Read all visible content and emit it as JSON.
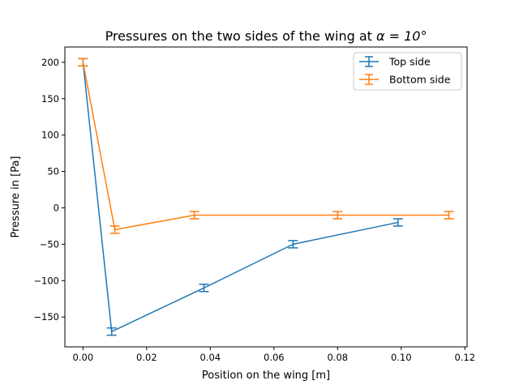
{
  "chart_data": {
    "type": "line",
    "title_prefix": "Pressures on the two sides of the wing at",
    "title_math": "α = 10°",
    "xlabel": "Position on the wing [m]",
    "ylabel": "Pressure in [Pa]",
    "xlim": [
      -0.0057,
      0.1207
    ],
    "ylim": [
      -191,
      221
    ],
    "xticks": [
      0.0,
      0.02,
      0.04,
      0.06,
      0.08,
      0.1,
      0.12
    ],
    "xtick_labels": [
      "0.00",
      "0.02",
      "0.04",
      "0.06",
      "0.08",
      "0.10",
      "0.12"
    ],
    "yticks": [
      -150,
      -100,
      -50,
      0,
      50,
      100,
      150,
      200
    ],
    "ytick_labels": [
      "−150",
      "−100",
      "−50",
      "0",
      "50",
      "100",
      "150",
      "200"
    ],
    "grid": false,
    "legend_position": "top-right",
    "series": [
      {
        "name": "Top side",
        "color": "#1f77b4",
        "x": [
          0.0,
          0.009,
          0.038,
          0.066,
          0.099
        ],
        "y": [
          200,
          -170,
          -110,
          -50,
          -20
        ],
        "yerr": [
          5,
          5,
          5,
          5,
          5
        ]
      },
      {
        "name": "Bottom side",
        "color": "#ff7f0e",
        "x": [
          0.0,
          0.01,
          0.035,
          0.08,
          0.115
        ],
        "y": [
          200,
          -30,
          -10,
          -10,
          -10
        ],
        "yerr": [
          5,
          5,
          5,
          5,
          5
        ]
      }
    ]
  }
}
